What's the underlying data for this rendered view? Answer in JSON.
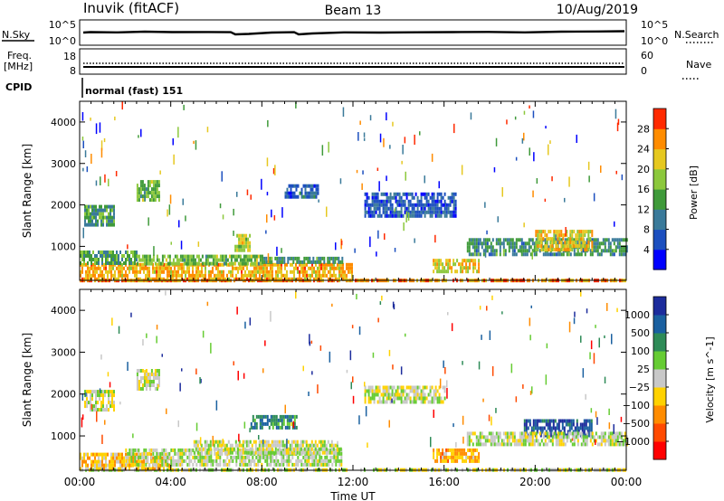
{
  "header": {
    "station": "Inuvik (fitACF)",
    "beam": "Beam 13",
    "date": "10/Aug/2019"
  },
  "top_panels": {
    "nsky_label": "N.Sky",
    "nsky_ticks": [
      "10^5",
      "10^0"
    ],
    "nsearch_label": "N.Search",
    "nsearch_ticks": [
      "10^5",
      "10^0"
    ],
    "freq_label_1": "Freq.",
    "freq_label_2": "[MHz]",
    "freq_ticks": [
      "18",
      "8"
    ],
    "nave_label": "Nave",
    "nave_ticks": [
      "60",
      "0"
    ],
    "cpid_label": "CPID",
    "cpid_value": "normal (fast) 151"
  },
  "chart_data": [
    {
      "type": "heatmap",
      "title": "",
      "xlabel": "Time UT",
      "ylabel": "Slant Range [km]",
      "x_ticks": [
        "00:00",
        "04:00",
        "08:00",
        "12:00",
        "16:00",
        "20:00",
        "00:00"
      ],
      "xlim_hours": [
        0,
        24
      ],
      "y_ticks": [
        "1000",
        "2000",
        "3000",
        "4000"
      ],
      "ylim_km": [
        180,
        4500
      ],
      "colorbar": {
        "label": "Power [dB]",
        "ticks": [
          "4",
          "8",
          "12",
          "16",
          "20",
          "24",
          "28"
        ],
        "range": [
          0,
          32
        ],
        "colors": [
          "#0000ff",
          "#1c4fbf",
          "#3a7a9a",
          "#3f9a3a",
          "#8cc83c",
          "#e6c820",
          "#ff8c00",
          "#ff2a00"
        ]
      },
      "regions": [
        {
          "t": [
            0.0,
            24.0
          ],
          "r": [
            180,
            220
          ],
          "v": 26
        },
        {
          "t": [
            0.0,
            12.0
          ],
          "r": [
            220,
            600
          ],
          "v": 24
        },
        {
          "t": [
            0.0,
            2.5
          ],
          "r": [
            600,
            900
          ],
          "v": 14
        },
        {
          "t": [
            2.5,
            8.0
          ],
          "r": [
            600,
            800
          ],
          "v": 16
        },
        {
          "t": [
            8.0,
            11.5
          ],
          "r": [
            600,
            750
          ],
          "v": 12
        },
        {
          "t": [
            0.2,
            1.5
          ],
          "r": [
            1500,
            2000
          ],
          "v": 13
        },
        {
          "t": [
            2.5,
            3.5
          ],
          "r": [
            2100,
            2600
          ],
          "v": 16
        },
        {
          "t": [
            6.8,
            7.5
          ],
          "r": [
            900,
            1300
          ],
          "v": 20
        },
        {
          "t": [
            9.0,
            10.5
          ],
          "r": [
            2200,
            2500
          ],
          "v": 8
        },
        {
          "t": [
            12.5,
            16.5
          ],
          "r": [
            1700,
            2300
          ],
          "v": 7
        },
        {
          "t": [
            15.5,
            17.5
          ],
          "r": [
            400,
            700
          ],
          "v": 22
        },
        {
          "t": [
            17.0,
            24.0
          ],
          "r": [
            800,
            1200
          ],
          "v": 12
        },
        {
          "t": [
            20.0,
            22.5
          ],
          "r": [
            900,
            1400
          ],
          "v": 22
        }
      ]
    },
    {
      "type": "heatmap",
      "title": "",
      "xlabel": "Time UT",
      "ylabel": "Slant Range [km]",
      "x_ticks": [
        "00:00",
        "04:00",
        "08:00",
        "12:00",
        "16:00",
        "20:00",
        "00:00"
      ],
      "xlim_hours": [
        0,
        24
      ],
      "y_ticks": [
        "1000",
        "2000",
        "3000",
        "4000"
      ],
      "ylim_km": [
        180,
        4500
      ],
      "colorbar": {
        "label": "Velocity [m s^-1]",
        "ticks": [
          "1000",
          "500",
          "100",
          "25",
          "−25",
          "−100",
          "−500",
          "−1000"
        ],
        "range": [
          -1200,
          1200
        ],
        "colors": [
          "#ff0000",
          "#ff4a00",
          "#ff8c00",
          "#ffd200",
          "#c8c8c8",
          "#66cc33",
          "#2e8b57",
          "#1a60a0",
          "#1c2c9c"
        ]
      },
      "regions": [
        {
          "t": [
            0.0,
            24.0
          ],
          "r": [
            180,
            230
          ],
          "v": 0
        },
        {
          "t": [
            0.0,
            4.0
          ],
          "r": [
            230,
            600
          ],
          "v": -300
        },
        {
          "t": [
            2.0,
            11.5
          ],
          "r": [
            300,
            700
          ],
          "v": 60
        },
        {
          "t": [
            5.0,
            11.5
          ],
          "r": [
            600,
            900
          ],
          "v": 0
        },
        {
          "t": [
            0.2,
            1.5
          ],
          "r": [
            1600,
            2100
          ],
          "v": 0
        },
        {
          "t": [
            2.5,
            3.5
          ],
          "r": [
            2100,
            2600
          ],
          "v": 0
        },
        {
          "t": [
            7.5,
            9.5
          ],
          "r": [
            1200,
            1500
          ],
          "v": 600
        },
        {
          "t": [
            12.5,
            16.0
          ],
          "r": [
            1800,
            2200
          ],
          "v": 0
        },
        {
          "t": [
            15.5,
            17.5
          ],
          "r": [
            400,
            700
          ],
          "v": -400
        },
        {
          "t": [
            19.5,
            22.5
          ],
          "r": [
            1000,
            1400
          ],
          "v": 900
        },
        {
          "t": [
            17.0,
            24.0
          ],
          "r": [
            800,
            1100
          ],
          "v": 40
        }
      ]
    }
  ]
}
